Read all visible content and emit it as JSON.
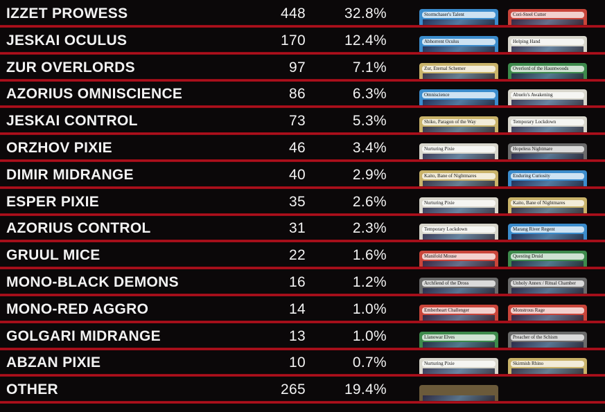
{
  "colors": {
    "accent_line": "#c0121f",
    "background": "#0b0809",
    "text": "#f2f2f2"
  },
  "rows": [
    {
      "name": "IZZET PROWESS",
      "count": "448",
      "pct": "32.8%",
      "cards": [
        {
          "title": "Stormchaser's Talent",
          "frame": "#3b8ccc"
        },
        {
          "title": "Cori-Steel Cutter",
          "frame": "#c9453a"
        }
      ]
    },
    {
      "name": "JESKAI OCULUS",
      "count": "170",
      "pct": "12.4%",
      "cards": [
        {
          "title": "Abhorrent Oculus",
          "frame": "#3b8ccc"
        },
        {
          "title": "Helping Hand",
          "frame": "#d8d6cc"
        }
      ]
    },
    {
      "name": "ZUR OVERLORDS",
      "count": "97",
      "pct": "7.1%",
      "cards": [
        {
          "title": "Zur, Eternal Schemer",
          "frame": "#c9b36a"
        },
        {
          "title": "Overlord of the Hauntwoods",
          "frame": "#3d8a4c"
        }
      ]
    },
    {
      "name": "AZORIUS OMNISCIENCE",
      "count": "86",
      "pct": "6.3%",
      "cards": [
        {
          "title": "Omniscience",
          "frame": "#3b8ccc"
        },
        {
          "title": "Abuelo's Awakening",
          "frame": "#d8d6cc"
        }
      ]
    },
    {
      "name": "JESKAI CONTROL",
      "count": "73",
      "pct": "5.3%",
      "cards": [
        {
          "title": "Shiko, Paragon of the Way",
          "frame": "#c9b36a"
        },
        {
          "title": "Temporary Lockdown",
          "frame": "#d8d6cc"
        }
      ]
    },
    {
      "name": "ORZHOV PIXIE",
      "count": "46",
      "pct": "3.4%",
      "cards": [
        {
          "title": "Nurturing Pixie",
          "frame": "#d8d6cc"
        },
        {
          "title": "Hopeless Nightmare",
          "frame": "#6b6b6b"
        }
      ]
    },
    {
      "name": "DIMIR MIDRANGE",
      "count": "40",
      "pct": "2.9%",
      "cards": [
        {
          "title": "Kaito, Bane of Nightmares",
          "frame": "#c9b36a"
        },
        {
          "title": "Enduring Curiosity",
          "frame": "#3b8ccc"
        }
      ]
    },
    {
      "name": "ESPER PIXIE",
      "count": "35",
      "pct": "2.6%",
      "cards": [
        {
          "title": "Nurturing Pixie",
          "frame": "#d8d6cc"
        },
        {
          "title": "Kaito, Bane of Nightmares",
          "frame": "#c9b36a"
        }
      ]
    },
    {
      "name": "AZORIUS CONTROL",
      "count": "31",
      "pct": "2.3%",
      "cards": [
        {
          "title": "Temporary Lockdown",
          "frame": "#d8d6cc"
        },
        {
          "title": "Marang River Regent",
          "frame": "#3b8ccc"
        }
      ]
    },
    {
      "name": "GRUUL MICE",
      "count": "22",
      "pct": "1.6%",
      "cards": [
        {
          "title": "Manifold Mouse",
          "frame": "#c9453a"
        },
        {
          "title": "Questing Druid",
          "frame": "#3d8a4c"
        }
      ]
    },
    {
      "name": "MONO-BLACK DEMONS",
      "count": "16",
      "pct": "1.2%",
      "cards": [
        {
          "title": "Archfiend of the Dross",
          "frame": "#6b6b6b"
        },
        {
          "title": "Unholy Annex / Ritual Chamber",
          "frame": "#6b6b6b"
        }
      ]
    },
    {
      "name": "MONO-RED AGGRO",
      "count": "14",
      "pct": "1.0%",
      "cards": [
        {
          "title": "Emberheart Challenger",
          "frame": "#c9453a"
        },
        {
          "title": "Monstrous Rage",
          "frame": "#c9453a"
        }
      ]
    },
    {
      "name": "GOLGARI MIDRANGE",
      "count": "13",
      "pct": "1.0%",
      "cards": [
        {
          "title": "Llanowar Elves",
          "frame": "#3d8a4c"
        },
        {
          "title": "Preacher of the Schism",
          "frame": "#6b6b6b"
        }
      ]
    },
    {
      "name": "ABZAN PIXIE",
      "count": "10",
      "pct": "0.7%",
      "cards": [
        {
          "title": "Nurturing Pixie",
          "frame": "#d8d6cc"
        },
        {
          "title": "Skirmish Rhino",
          "frame": "#c9b36a"
        }
      ]
    },
    {
      "name": "OTHER",
      "count": "265",
      "pct": "19.4%",
      "cards": [
        {
          "title": "",
          "frame": "#6b5a3a"
        }
      ]
    }
  ]
}
